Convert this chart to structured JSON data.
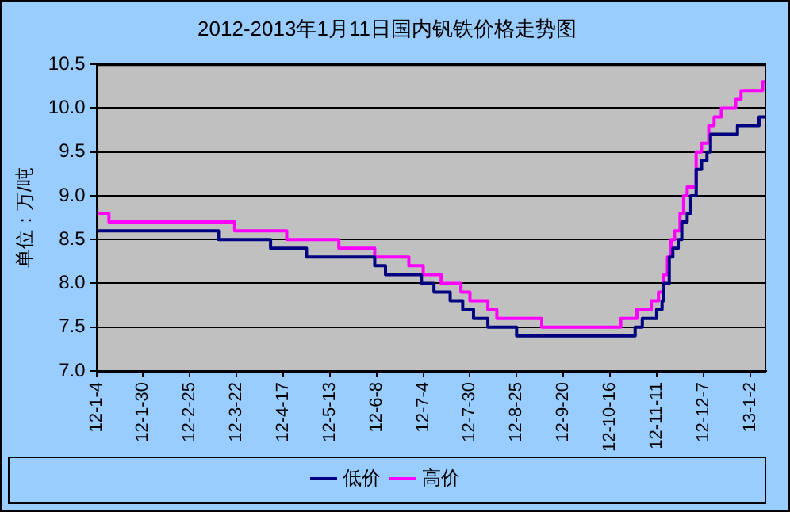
{
  "chart_data": {
    "type": "step",
    "title": "2012-2013年1月11日国内钒铁价格走势图",
    "ylabel": "单位：万/吨",
    "xlim": [
      "2012-01-04",
      "2013-01-11"
    ],
    "xticks": [
      {
        "value": "2012-01-04",
        "label": "12-1-4"
      },
      {
        "value": "2012-01-30",
        "label": "12-1-30"
      },
      {
        "value": "2012-02-25",
        "label": "12-2-25"
      },
      {
        "value": "2012-03-22",
        "label": "12-3-22"
      },
      {
        "value": "2012-04-17",
        "label": "12-4-17"
      },
      {
        "value": "2012-05-13",
        "label": "12-5-13"
      },
      {
        "value": "2012-06-08",
        "label": "12-6-8"
      },
      {
        "value": "2012-07-04",
        "label": "12-7-4"
      },
      {
        "value": "2012-07-30",
        "label": "12-7-30"
      },
      {
        "value": "2012-08-25",
        "label": "12-8-25"
      },
      {
        "value": "2012-09-20",
        "label": "12-9-20"
      },
      {
        "value": "2012-10-16",
        "label": "12-10-16"
      },
      {
        "value": "2012-11-11",
        "label": "12-11-11"
      },
      {
        "value": "2012-12-07",
        "label": "12-12-7"
      },
      {
        "value": "2013-01-02",
        "label": "13-1-2"
      }
    ],
    "ylim": [
      7.0,
      10.5
    ],
    "yticks": [
      {
        "value": 7.0,
        "label": "7.0"
      },
      {
        "value": 7.5,
        "label": "7.5"
      },
      {
        "value": 8.0,
        "label": "8.0"
      },
      {
        "value": 8.5,
        "label": "8.5"
      },
      {
        "value": 9.0,
        "label": "9.0"
      },
      {
        "value": 9.5,
        "label": "9.5"
      },
      {
        "value": 10.0,
        "label": "10.0"
      },
      {
        "value": 10.5,
        "label": "10.5"
      }
    ],
    "grid": "y",
    "legend": "bottom",
    "series": [
      {
        "name": "低价",
        "color": "#000080",
        "x": [
          "2012-01-04",
          "2012-03-12",
          "2012-04-10",
          "2012-04-30",
          "2012-06-07",
          "2012-06-13",
          "2012-07-03",
          "2012-07-10",
          "2012-07-19",
          "2012-07-26",
          "2012-08-01",
          "2012-08-09",
          "2012-08-25",
          "2012-10-30",
          "2012-11-03",
          "2012-11-11",
          "2012-11-14",
          "2012-11-15",
          "2012-11-18",
          "2012-11-20",
          "2012-11-23",
          "2012-11-25",
          "2012-11-28",
          "2012-11-30",
          "2012-12-03",
          "2012-12-06",
          "2012-12-09",
          "2012-12-11",
          "2012-12-26",
          "2013-01-07",
          "2013-01-11"
        ],
        "values": [
          8.6,
          8.5,
          8.4,
          8.3,
          8.2,
          8.1,
          8.0,
          7.9,
          7.8,
          7.7,
          7.6,
          7.5,
          7.4,
          7.5,
          7.6,
          7.7,
          7.8,
          8.0,
          8.3,
          8.4,
          8.5,
          8.7,
          8.8,
          9.0,
          9.3,
          9.4,
          9.5,
          9.7,
          9.8,
          9.9,
          9.9
        ]
      },
      {
        "name": "高价",
        "color": "#ff00ff",
        "x": [
          "2012-01-04",
          "2012-01-11",
          "2012-03-21",
          "2012-04-19",
          "2012-05-18",
          "2012-06-07",
          "2012-06-26",
          "2012-07-04",
          "2012-07-14",
          "2012-07-25",
          "2012-07-30",
          "2012-08-09",
          "2012-08-14",
          "2012-09-08",
          "2012-10-22",
          "2012-10-31",
          "2012-11-08",
          "2012-11-12",
          "2012-11-15",
          "2012-11-17",
          "2012-11-19",
          "2012-11-21",
          "2012-11-24",
          "2012-11-26",
          "2012-11-28",
          "2012-12-03",
          "2012-12-06",
          "2012-12-10",
          "2012-12-13",
          "2012-12-17",
          "2012-12-25",
          "2012-12-28",
          "2013-01-09",
          "2013-01-11"
        ],
        "values": [
          8.8,
          8.7,
          8.6,
          8.5,
          8.4,
          8.3,
          8.2,
          8.1,
          8.0,
          7.9,
          7.8,
          7.7,
          7.6,
          7.5,
          7.6,
          7.7,
          7.8,
          7.9,
          8.1,
          8.3,
          8.5,
          8.6,
          8.8,
          9.0,
          9.1,
          9.5,
          9.6,
          9.8,
          9.9,
          10.0,
          10.1,
          10.2,
          10.3,
          10.3
        ]
      }
    ]
  }
}
